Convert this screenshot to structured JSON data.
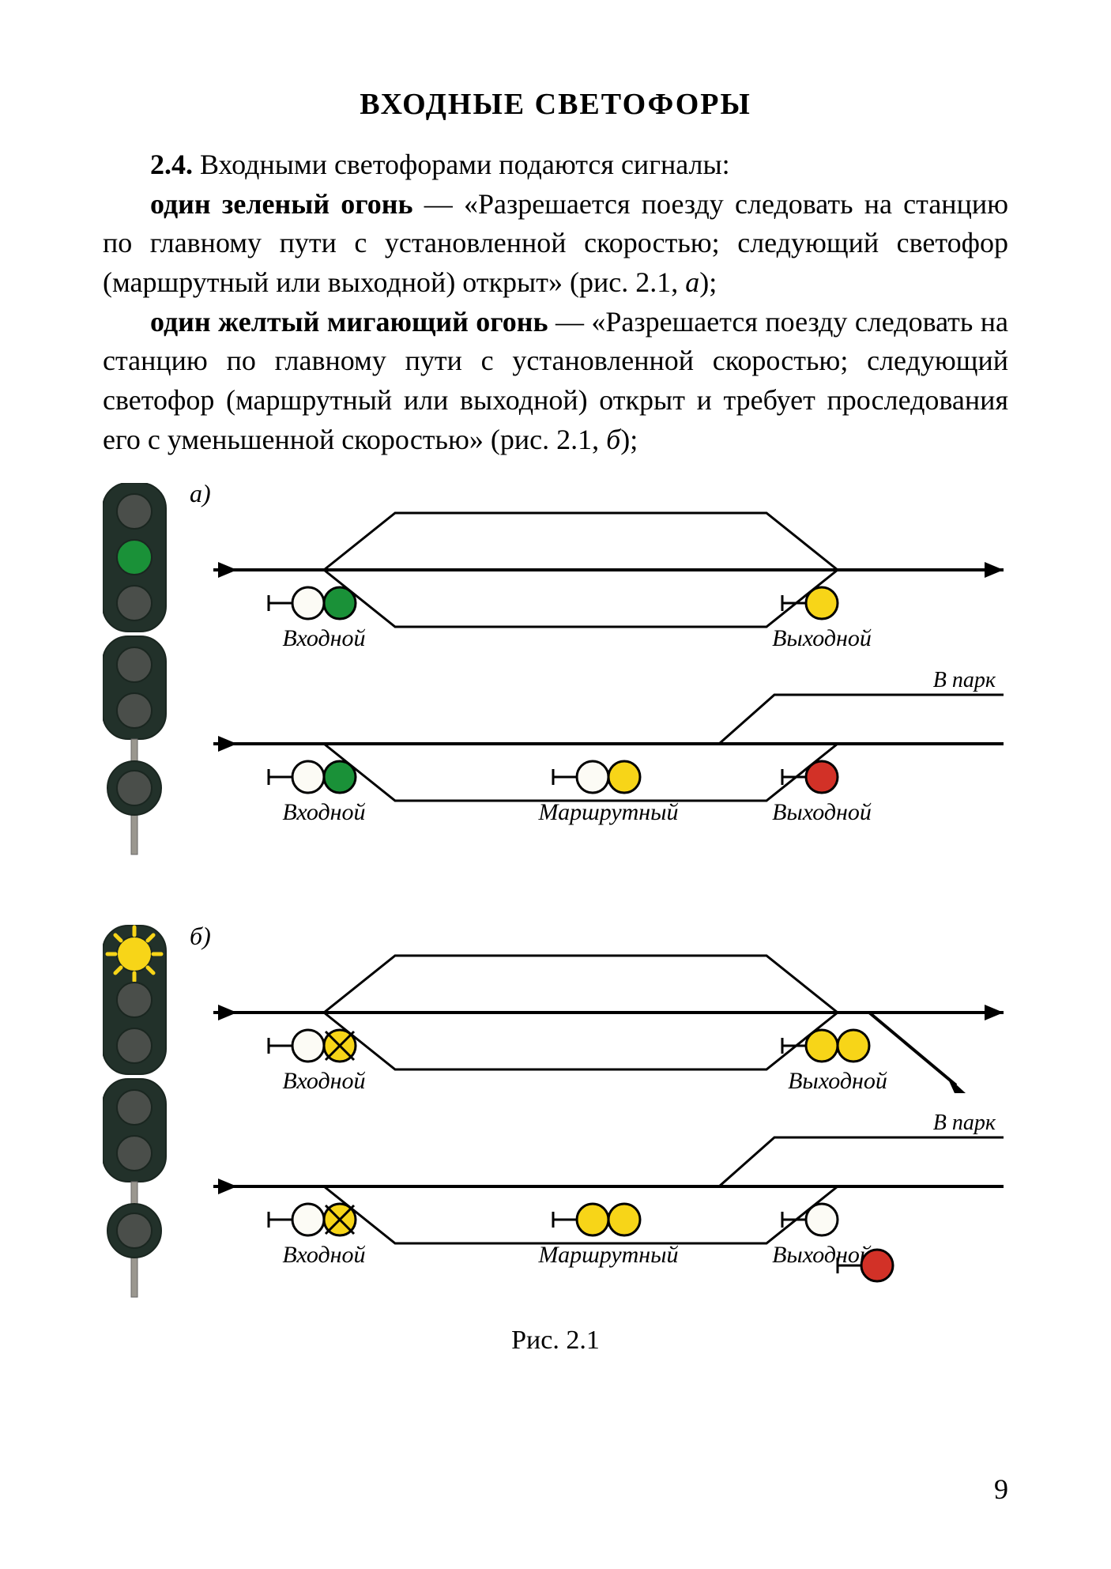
{
  "title": "ВХОДНЫЕ  СВЕТОФОРЫ",
  "section_number": "2.4.",
  "intro": "Входными светофорами подаются сигналы:",
  "signals": [
    {
      "name": "один зеленый огонь",
      "desc": " — «Разрешается поезду следовать на станцию по главному пути с установленной скоростью; следующий светофор (маршрутный или выходной) открыт» (рис. 2.1, ",
      "fig_label": "a",
      "desc_tail": ");"
    },
    {
      "name": "один желтый мигающий огонь",
      "desc": " — «Разрешается поезду следовать на станцию по главному пути с установленной скоростью; следующий светофор (маршрутный или выходной) открыт и требует проследования его с уменьшенной скоростью» (рис. 2.1, ",
      "fig_label": "б",
      "desc_tail": ");"
    }
  ],
  "figure_caption": "Рис. 2.1",
  "page_number": "9",
  "labels": {
    "panel_a": "a)",
    "panel_b": "б)",
    "entrance": "Входной",
    "route": "Маршрутный",
    "exit": "Выходной",
    "to_yard": "В парк"
  },
  "colors": {
    "signal_body": "#22312a",
    "signal_body_dark": "#1a2620",
    "off_lamp": "#4a4e4a",
    "off_lamp_hi": "#6d706d",
    "green": "#1a9138",
    "green_dark": "#0b7127",
    "yellow": "#f7d518",
    "yellow_dark": "#d7b500",
    "red": "#d23127",
    "red_dark": "#a5211a",
    "white_lamp": "#fcfbf5",
    "track": "#000000",
    "mast": "#9a978f",
    "text": "#000000"
  },
  "figure_a": {
    "signal_head": {
      "lamps_top": [
        "off",
        "green",
        "off"
      ],
      "lamps_mid": [
        "off",
        "off"
      ],
      "lamp_bottom": "off"
    },
    "rows": [
      {
        "entrance_signal": [
          "white",
          "green"
        ],
        "entrance_label": "Входной",
        "mid_signal": null,
        "mid_label": null,
        "exit_signal": [
          "yellow"
        ],
        "exit_label": "Выходной",
        "to_yard_line": false,
        "to_yard_label": null,
        "has_top_split": true,
        "has_bottom_split": true,
        "bottom_ends_open": false
      },
      {
        "entrance_signal": [
          "white",
          "green"
        ],
        "entrance_label": "Входной",
        "mid_signal": [
          "white",
          "yellow"
        ],
        "mid_label": "Маршрутный",
        "exit_signal": [
          "red"
        ],
        "exit_label": "Выходной",
        "to_yard_line": true,
        "to_yard_label": "В парк",
        "has_top_split": false,
        "has_bottom_split": true,
        "bottom_ends_open": false
      }
    ]
  },
  "figure_b": {
    "signal_head": {
      "lamps_top": [
        "yellow_flash",
        "off",
        "off"
      ],
      "lamps_mid": [
        "off",
        "off"
      ],
      "lamp_bottom": "off"
    },
    "rows": [
      {
        "entrance_signal": [
          "white",
          "yellow_cross"
        ],
        "entrance_label": "Входной",
        "mid_signal": null,
        "mid_label": null,
        "exit_signal": [
          "yellow",
          "yellow"
        ],
        "exit_label": "Выходной",
        "to_yard_line": false,
        "to_yard_label": null,
        "has_top_split": true,
        "has_bottom_split": true,
        "bottom_ends_open": true
      },
      {
        "entrance_signal": [
          "white",
          "yellow_cross"
        ],
        "entrance_label": "Входной",
        "mid_signal": [
          "yellow",
          "yellow"
        ],
        "mid_label": "Маршрутный",
        "exit_signal": [
          "white"
        ],
        "exit_signal_below": [
          "red"
        ],
        "exit_label": "Выходной",
        "to_yard_line": true,
        "to_yard_label": "В парк",
        "has_top_split": false,
        "has_bottom_split": true,
        "bottom_ends_open": false
      }
    ]
  }
}
